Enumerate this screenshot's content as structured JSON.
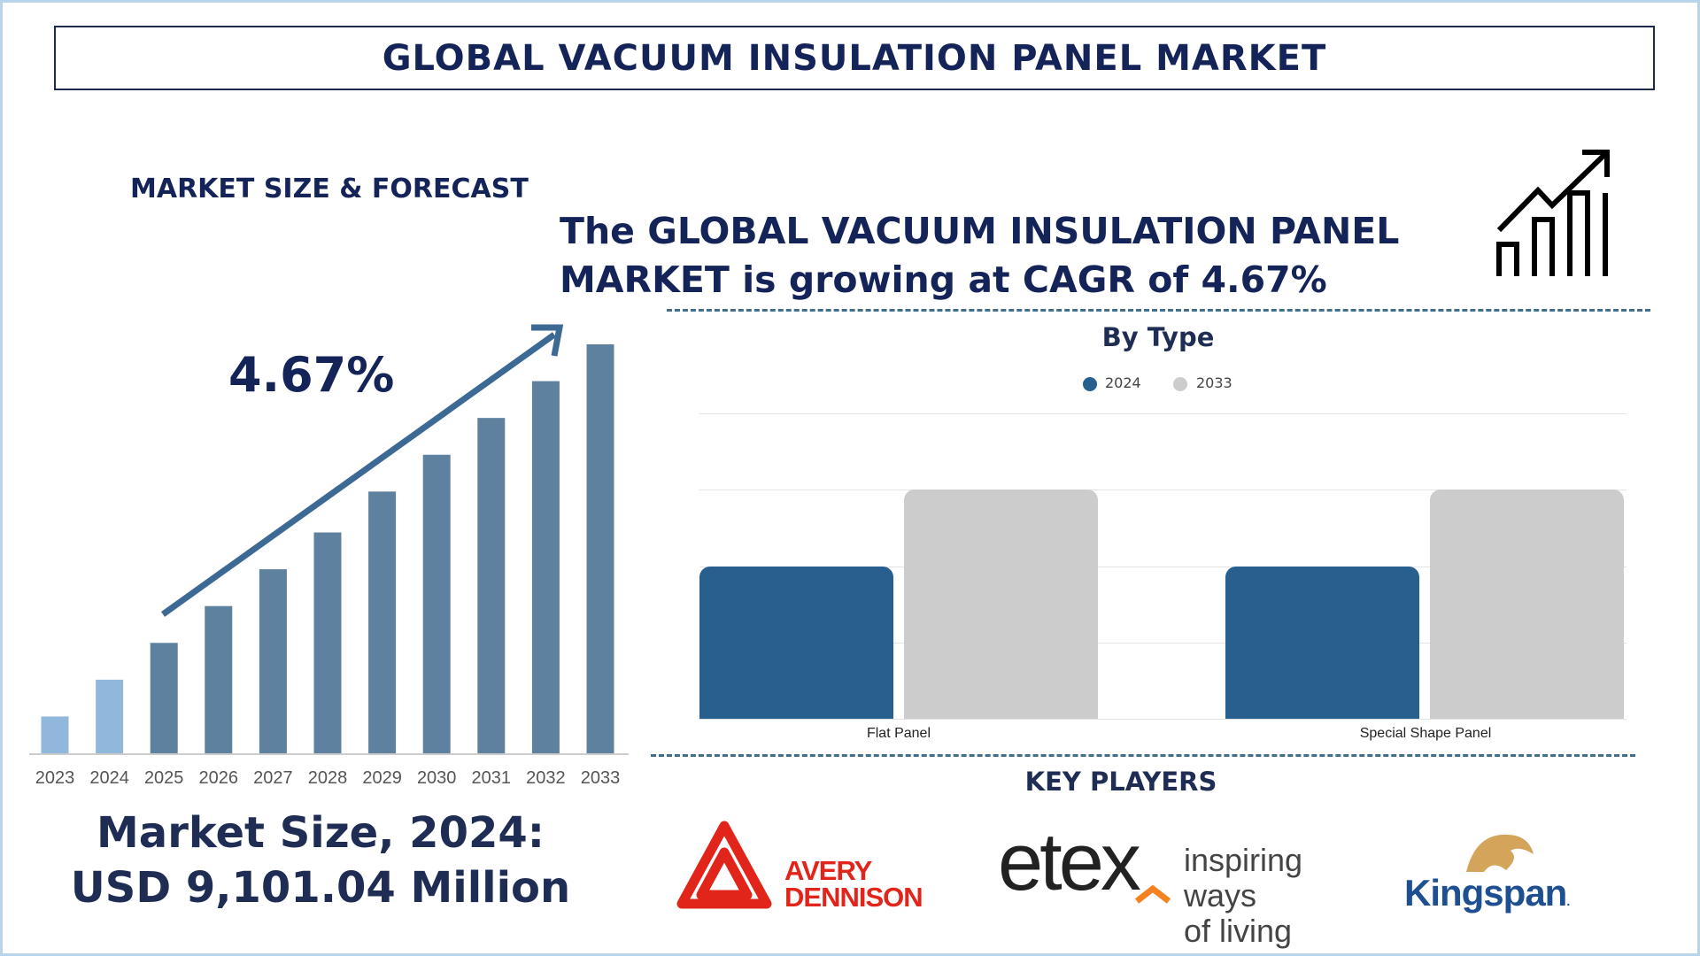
{
  "header": {
    "title": "GLOBAL VACUUM INSULATION PANEL MARKET"
  },
  "section_label": "MARKET SIZE & FORECAST",
  "headline": {
    "line1": "The GLOBAL VACUUM INSULATION PANEL",
    "line2": "MARKET is growing at CAGR of 4.67%"
  },
  "cagr_label": "4.67%",
  "market_size": {
    "line1": "Market Size, 2024:",
    "line2": "USD 9,101.04 Million"
  },
  "icons": {
    "growth": "growth-chart-arrow-icon"
  },
  "key_players": {
    "title": "KEY PLAYERS",
    "logos": [
      {
        "name": "AVERY DENNISON",
        "line1": "AVERY",
        "line2": "DENNISON",
        "color": "#e1251b"
      },
      {
        "name": "etex",
        "tagline1": "inspiring ways",
        "tagline2": "of living",
        "accent": "#f58220"
      },
      {
        "name": "Kingspan",
        "color": "#1d4f91"
      }
    ]
  },
  "chart_data": [
    {
      "type": "bar",
      "title": "",
      "categories": [
        "2023",
        "2024",
        "2025",
        "2026",
        "2027",
        "2028",
        "2029",
        "2030",
        "2031",
        "2032",
        "2033"
      ],
      "values_relative_to_2033": [
        0.09,
        0.18,
        0.27,
        0.36,
        0.45,
        0.54,
        0.64,
        0.73,
        0.82,
        0.91,
        1.0
      ],
      "colors": {
        "historical": "#8fb8dc",
        "forecast": "#5f81a0",
        "trend_arrow": "#3d6a94"
      },
      "annotation": "4.67%",
      "grid": false
    },
    {
      "type": "bar",
      "title": "By Type",
      "categories": [
        "Flat Panel",
        "Special Shape Panel"
      ],
      "series": [
        {
          "name": "2024",
          "values": [
            2,
            2
          ],
          "color": "#27608e"
        },
        {
          "name": "2033",
          "values": [
            3,
            3
          ],
          "color": "#cccccc"
        }
      ],
      "ylim": [
        0,
        4
      ],
      "grid": true,
      "legend": "top-center",
      "y_tick_labels_shown": false
    }
  ]
}
